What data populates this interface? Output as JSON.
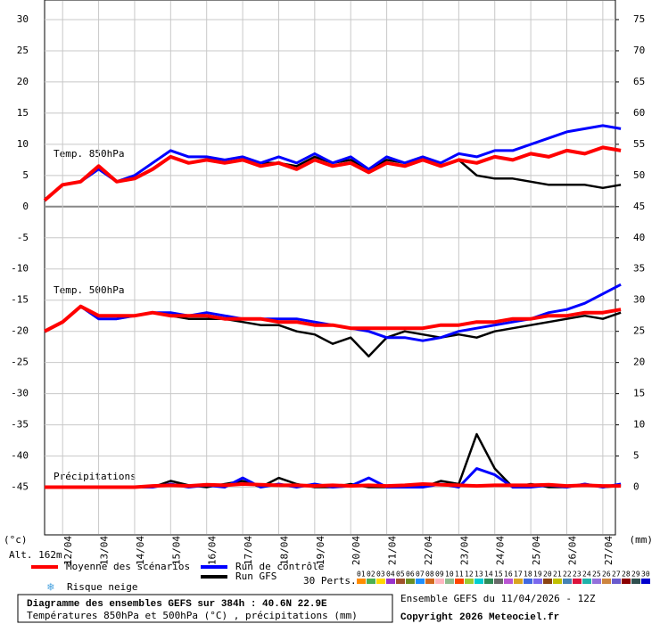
{
  "chart_data": {
    "type": "line",
    "title": "Diagramme des ensembles GEFS sur 384h : 40.6N 22.9E",
    "subtitle": "Températures 850hPa et 500hPa (°C) , précipitations (mm)",
    "run_label": "Ensemble GEFS du 11/04/2026 - 12Z",
    "copyright": "Copyright 2026 Meteociel.fr",
    "y_unit": "(°c)",
    "y2_unit": "(mm)",
    "altitude": "Alt. 162m",
    "panel_labels": [
      "Temp. 850hPa",
      "Temp. 500hPa",
      "Précipitations"
    ],
    "snow_label": "Risque neige",
    "perts_label": "30 Perts.",
    "pert_labels": [
      "01",
      "02",
      "03",
      "04",
      "05",
      "06",
      "07",
      "08",
      "09",
      "10",
      "11",
      "12",
      "13",
      "14",
      "15",
      "16",
      "17",
      "18",
      "19",
      "20",
      "21",
      "22",
      "23",
      "24",
      "25",
      "26",
      "27",
      "28",
      "29",
      "30"
    ],
    "pert_colors": [
      "#ff8c00",
      "#4caf50",
      "#ffd700",
      "#9932cc",
      "#a0522d",
      "#6b8e23",
      "#1e90ff",
      "#d2691e",
      "#ffb6c1",
      "#8fbc8f",
      "#ff4500",
      "#9acd32",
      "#00ced1",
      "#2e8b57",
      "#696969",
      "#ba55d3",
      "#daa520",
      "#4169e1",
      "#7b68ee",
      "#8b4513",
      "#c0c000",
      "#4682b4",
      "#dc143c",
      "#20b2aa",
      "#9370db",
      "#cd853f",
      "#6a5acd",
      "#8b0000",
      "#2f4f4f",
      "#0000cd"
    ],
    "x": [
      0,
      1,
      2,
      3,
      4,
      5,
      6,
      7,
      8,
      9,
      10,
      11,
      12,
      13,
      14,
      15,
      16,
      17,
      18,
      19,
      20,
      21,
      22,
      23,
      24,
      25,
      26,
      27,
      28,
      29,
      30,
      31,
      32
    ],
    "xlim": [
      0,
      31.7
    ],
    "xticks": [
      {
        "value": 1,
        "label": "12/04"
      },
      {
        "value": 3,
        "label": "13/04"
      },
      {
        "value": 5,
        "label": "14/04"
      },
      {
        "value": 7,
        "label": "15/04"
      },
      {
        "value": 9,
        "label": "16/04"
      },
      {
        "value": 11,
        "label": "17/04"
      },
      {
        "value": 13,
        "label": "18/04"
      },
      {
        "value": 15,
        "label": "19/04"
      },
      {
        "value": 17,
        "label": "20/04"
      },
      {
        "value": 19,
        "label": "21/04"
      },
      {
        "value": 21,
        "label": "22/04"
      },
      {
        "value": 23,
        "label": "23/04"
      },
      {
        "value": 25,
        "label": "24/04"
      },
      {
        "value": 27,
        "label": "25/04"
      },
      {
        "value": 29,
        "label": "26/04"
      },
      {
        "value": 31,
        "label": "27/04"
      }
    ],
    "ylim": [
      -52.5,
      33
    ],
    "yticks": [
      30,
      25,
      20,
      15,
      10,
      5,
      0,
      -5,
      -10,
      -15,
      -20,
      -25,
      -30,
      -35,
      -40,
      -45
    ],
    "y2lim": [
      -7.5,
      78
    ],
    "y2ticks": [
      75,
      70,
      65,
      60,
      55,
      50,
      45,
      40,
      35,
      30,
      25,
      20,
      15,
      10,
      5,
      0
    ],
    "grid": true,
    "series": [
      {
        "name": "Moyenne des scénarios",
        "color": "#ff0000",
        "values_850": [
          1,
          3.5,
          4,
          6.5,
          4,
          4.5,
          6,
          8,
          7,
          7.5,
          7,
          7.5,
          6.5,
          7,
          6,
          7.5,
          6.5,
          7,
          5.5,
          7,
          6.5,
          7.5,
          6.5,
          7.5,
          7,
          8,
          7.5,
          8.5,
          8,
          9,
          8.5,
          9.5,
          9
        ],
        "values_500": [
          -20,
          -18.5,
          -16,
          -17.5,
          -17.5,
          -17.5,
          -17,
          -17.5,
          -17.5,
          -17.5,
          -18,
          -18,
          -18,
          -18.5,
          -18.5,
          -19,
          -19,
          -19.5,
          -19.5,
          -19.5,
          -19.5,
          -19.5,
          -19,
          -19,
          -18.5,
          -18.5,
          -18,
          -18,
          -17.5,
          -17.5,
          -17,
          -17,
          -16.5
        ],
        "values_precip": [
          0,
          0,
          0,
          0,
          0,
          0,
          0.2,
          0.3,
          0.2,
          0.4,
          0.3,
          0.5,
          0.4,
          0.3,
          0.3,
          0.2,
          0.3,
          0.2,
          0.3,
          0.2,
          0.3,
          0.5,
          0.4,
          0.3,
          0.2,
          0.3,
          0.3,
          0.3,
          0.4,
          0.2,
          0.3,
          0.2,
          0.2
        ]
      },
      {
        "name": "Run de contrôle",
        "color": "#0000ff",
        "values_850": [
          1,
          3.5,
          4,
          6,
          4,
          5,
          7,
          9,
          8,
          8,
          7.5,
          8,
          7,
          8,
          7,
          8.5,
          7,
          8,
          6,
          8,
          7,
          8,
          7,
          8.5,
          8,
          9,
          9,
          10,
          11,
          12,
          12.5,
          13,
          12.5
        ],
        "values_500": [
          -20,
          -18.5,
          -16,
          -18,
          -18,
          -17.5,
          -17,
          -17,
          -17.5,
          -17,
          -17.5,
          -18,
          -18,
          -18,
          -18,
          -18.5,
          -19,
          -19.5,
          -20,
          -21,
          -21,
          -21.5,
          -21,
          -20,
          -19.5,
          -19,
          -18.5,
          -18,
          -17,
          -16.5,
          -15.5,
          -14,
          -12.5
        ],
        "values_precip": [
          0,
          0,
          0,
          0,
          0,
          0,
          0,
          0.5,
          0,
          0.3,
          0,
          1.5,
          0,
          0.5,
          0,
          0.5,
          0,
          0.2,
          1.5,
          0,
          0,
          0,
          0.5,
          0,
          3,
          2,
          0,
          0,
          0.3,
          0,
          0.5,
          0,
          0.5
        ]
      },
      {
        "name": "Run GFS",
        "color": "#000000",
        "values_850": [
          1,
          3.5,
          4,
          6.5,
          4,
          5,
          7,
          9,
          8,
          8,
          7,
          7.5,
          7,
          7,
          6.5,
          8,
          7,
          7.5,
          6,
          7.5,
          7,
          8,
          6.5,
          7.5,
          5,
          4.5,
          4.5,
          4,
          3.5,
          3.5,
          3.5,
          3,
          3.5
        ],
        "values_500": [
          -20,
          -18.5,
          -16,
          -18,
          -18,
          -17.5,
          -17,
          -17.5,
          -18,
          -18,
          -18,
          -18.5,
          -19,
          -19,
          -20,
          -20.5,
          -22,
          -21,
          -24,
          -21,
          -20,
          -20.5,
          -21,
          -20.5,
          -21,
          -20,
          -19.5,
          -19,
          -18.5,
          -18,
          -17.5,
          -18,
          -17
        ],
        "values_precip": [
          0,
          0,
          0,
          0,
          0,
          0,
          0,
          1,
          0.3,
          0,
          0.5,
          1,
          0,
          1.5,
          0.5,
          0,
          0,
          0.5,
          0,
          0,
          0,
          0,
          1,
          0.5,
          8.5,
          3,
          0,
          0.5,
          0,
          0,
          0.5,
          0,
          0.2
        ]
      }
    ]
  }
}
